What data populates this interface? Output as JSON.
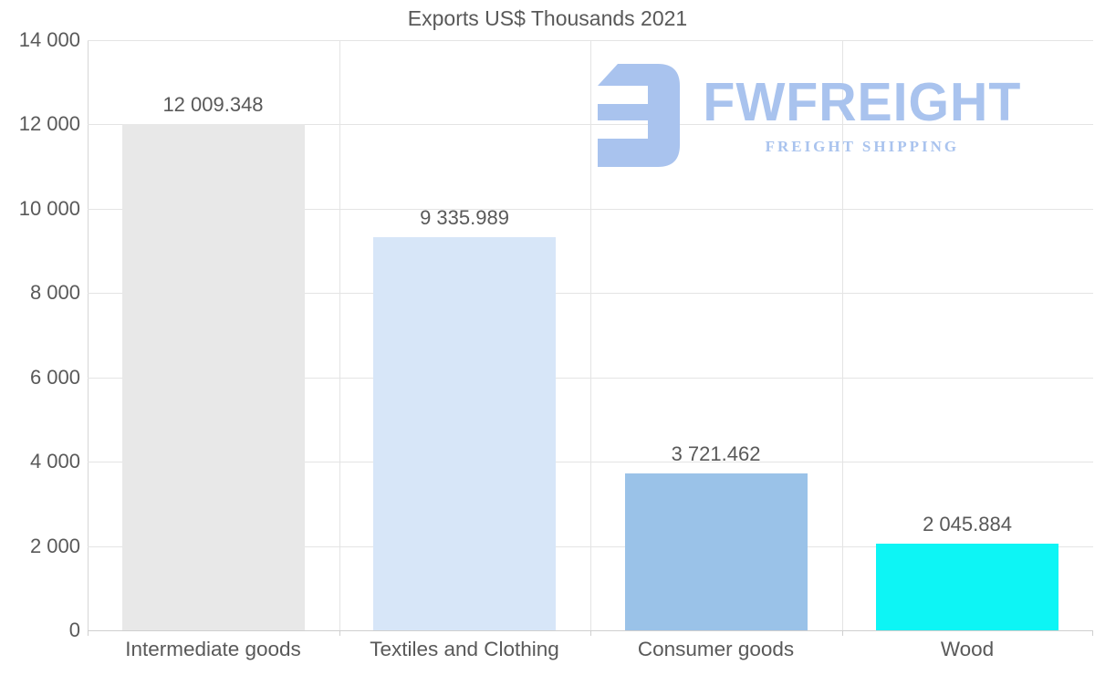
{
  "title": "Exports US$ Thousands 2021",
  "chart_data": {
    "type": "bar",
    "title": "Exports US$ Thousands 2021",
    "categories": [
      "Intermediate goods",
      "Textiles and Clothing",
      "Consumer goods",
      "Wood"
    ],
    "values": [
      12009.348,
      9335.989,
      3721.462,
      2045.884
    ],
    "value_labels": [
      "12 009.348",
      "9 335.989",
      "3 721.462",
      "2 045.884"
    ],
    "bar_colors": [
      "#e8e8e8",
      "#d7e6f8",
      "#9ac2e8",
      "#0df5f5"
    ],
    "xlabel": "",
    "ylabel": "",
    "ylim": [
      0,
      14000
    ],
    "ytick_step": 2000,
    "ytick_labels": [
      "0",
      "2 000",
      "4 000",
      "6 000",
      "8 000",
      "10 000",
      "12 000",
      "14 000"
    ],
    "grid": true,
    "legend": "none"
  },
  "watermark": {
    "brand": "FWFREIGHT",
    "tagline": "FREIGHT SHIPPING",
    "color": "#a9c3ee"
  },
  "colors": {
    "text": "#595959",
    "gridline": "#e4e4e4",
    "axis": "#cfcfcf",
    "background": "#ffffff"
  }
}
